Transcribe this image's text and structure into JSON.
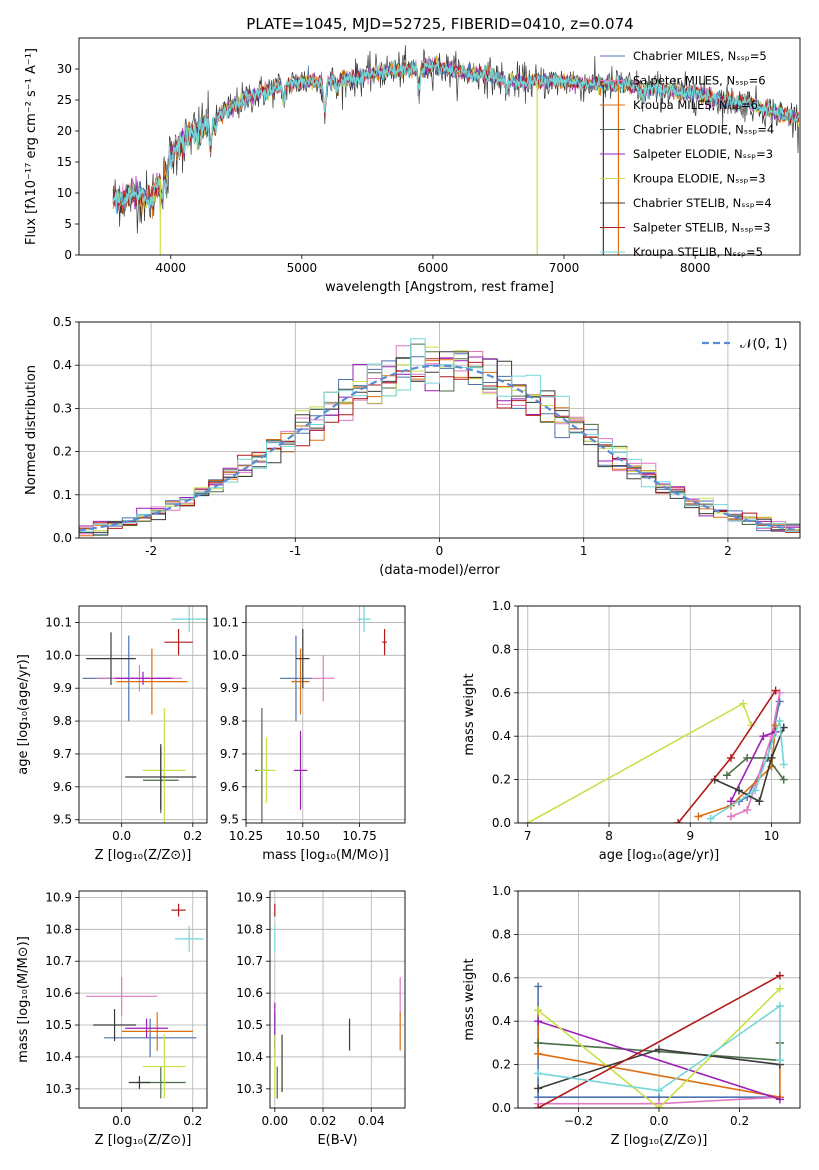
{
  "title": "PLATE=1045, MJD=52725, FIBERID=0410, z=0.074",
  "colors": {
    "Chabrier MILES": "#4c72b0",
    "Salpeter MILES": "#e377c2",
    "Kroupa MILES": "#dd6d10",
    "Chabrier ELODIE": "#4a6e46",
    "Salpeter ELODIE": "#9b1fb5",
    "Kroupa ELODIE": "#c8e04a",
    "Chabrier STELIB": "#3a3a3a",
    "Salpeter STELIB": "#b21a1a",
    "Kroupa STELIB": "#72d6d8",
    "gaussian": "#5b8bd6"
  },
  "chart_data": [
    {
      "id": "spectrum",
      "type": "line",
      "xlabel": "wavelength [Angstrom, rest frame]",
      "ylabel": "Flux [fλ10⁻¹⁷ erg cm⁻² s⁻¹ A⁻¹]",
      "xlim": [
        3300,
        8800
      ],
      "ylim": [
        0,
        35
      ],
      "xticks": [
        4000,
        5000,
        6000,
        7000,
        8000
      ],
      "yticks": [
        0,
        5,
        10,
        15,
        20,
        25,
        30
      ],
      "legend_position": "right",
      "legend": [
        "Chabrier MILES, Nₛₛₚ=5",
        "Salpeter MILES, Nₛₛₚ=6",
        "Kroupa MILES, Nₛₛₚ=6",
        "Chabrier ELODIE, Nₛₛₚ=4",
        "Salpeter ELODIE, Nₛₛₚ=3",
        "Kroupa ELODIE, Nₛₛₚ=3",
        "Chabrier STELIB, Nₛₛₚ=4",
        "Salpeter STELIB, Nₛₛₚ=3",
        "Kroupa STELIB, Nₛₛₚ=5"
      ],
      "continuum": {
        "x": [
          3550,
          3700,
          3850,
          4000,
          4100,
          4200,
          4400,
          4600,
          4800,
          5000,
          5200,
          5400,
          5600,
          5800,
          6000,
          6200,
          6400,
          6600,
          6800,
          7000,
          7200,
          7400,
          7600,
          7800,
          8000,
          8200,
          8400,
          8600,
          8800
        ],
        "y": [
          9,
          9.5,
          9,
          16,
          19,
          20,
          23,
          25.5,
          27,
          28,
          28,
          28.5,
          29.5,
          30,
          30.5,
          29.5,
          29,
          28,
          28,
          28,
          27.5,
          27.5,
          27,
          26.5,
          26,
          25,
          24.5,
          23,
          22
        ]
      }
    },
    {
      "id": "residuals",
      "type": "histogram",
      "xlabel": "(data-model)/error",
      "ylabel": "Normed distribution",
      "xlim": [
        -2.5,
        2.5
      ],
      "ylim": [
        0,
        0.5
      ],
      "xticks": [
        -2,
        -1,
        0,
        1,
        2
      ],
      "yticks": [
        0.0,
        0.1,
        0.2,
        0.3,
        0.4,
        0.5
      ],
      "legend": "𝒩(0, 1)",
      "legend_position": "top-right",
      "bin_width": 0.1
    },
    {
      "id": "age-vs-Z",
      "type": "scatter",
      "xlabel": "Z [log₁₀(Z/Z⊙)]",
      "ylabel": "age  [log₁₀(age/yr)]",
      "xlim": [
        -0.12,
        0.24
      ],
      "ylim": [
        9.49,
        10.15
      ],
      "xticks": [
        0.0,
        0.2
      ],
      "xticklabels": [
        "0.0",
        "0.2"
      ],
      "yticks": [
        9.5,
        9.6,
        9.7,
        9.8,
        9.9,
        10.0,
        10.1
      ],
      "points": [
        {
          "model": "Chabrier MILES",
          "x": 0.02,
          "y": 9.93,
          "xerr": 0.13,
          "yerr": 0.13
        },
        {
          "model": "Salpeter MILES",
          "x": 0.05,
          "y": 9.93,
          "xerr": 0.12,
          "yerr": 0.04
        },
        {
          "model": "Kroupa MILES",
          "x": 0.085,
          "y": 9.92,
          "xerr": 0.1,
          "yerr": 0.1
        },
        {
          "model": "Chabrier ELODIE",
          "x": 0.11,
          "y": 9.62,
          "xerr": 0.05,
          "yerr": 0.1
        },
        {
          "model": "Salpeter ELODIE",
          "x": 0.06,
          "y": 9.93,
          "xerr": 0.08,
          "yerr": 0.02
        },
        {
          "model": "Kroupa ELODIE",
          "x": 0.12,
          "y": 9.65,
          "xerr": 0.06,
          "yerr": 0.19
        },
        {
          "model": "Chabrier STELIB",
          "x": -0.03,
          "y": 9.99,
          "xerr": 0.07,
          "yerr": 0.08
        },
        {
          "model": "Chabrier STELIB",
          "x": 0.11,
          "y": 9.63,
          "xerr": 0.1,
          "yerr": 0.1
        },
        {
          "model": "Salpeter STELIB",
          "x": 0.16,
          "y": 10.04,
          "xerr": 0.04,
          "yerr": 0.04
        },
        {
          "model": "Kroupa STELIB",
          "x": 0.19,
          "y": 10.11,
          "xerr": 0.05,
          "yerr": 0.04
        }
      ]
    },
    {
      "id": "age-vs-mass",
      "type": "scatter",
      "xlabel": "mass [log₁₀(M/M⊙)]",
      "ylabel": "",
      "xlim": [
        10.25,
        10.95
      ],
      "ylim": [
        9.49,
        10.15
      ],
      "xticks": [
        10.25,
        10.5,
        10.75
      ],
      "xticklabels": [
        "10.25",
        "10.50",
        "10.75"
      ],
      "yticks": [
        9.5,
        9.6,
        9.7,
        9.8,
        9.9,
        10.0,
        10.1
      ],
      "points": [
        {
          "model": "Chabrier MILES",
          "x": 10.47,
          "y": 9.93,
          "xerr": 0.07,
          "yerr": 0.13
        },
        {
          "model": "Salpeter MILES",
          "x": 10.59,
          "y": 9.93,
          "xerr": 0.05,
          "yerr": 0.07
        },
        {
          "model": "Kroupa MILES",
          "x": 10.49,
          "y": 9.92,
          "xerr": 0.04,
          "yerr": 0.1
        },
        {
          "model": "Chabrier ELODIE",
          "x": 10.32,
          "y": 9.65,
          "xerr": 0.03,
          "yerr": 0.19
        },
        {
          "model": "Salpeter ELODIE",
          "x": 10.49,
          "y": 9.65,
          "xerr": 0.03,
          "yerr": 0.12
        },
        {
          "model": "Kroupa ELODIE",
          "x": 10.34,
          "y": 9.65,
          "xerr": 0.04,
          "yerr": 0.1
        },
        {
          "model": "Chabrier STELIB",
          "x": 10.5,
          "y": 9.99,
          "xerr": 0.03,
          "yerr": 0.09
        },
        {
          "model": "Salpeter STELIB",
          "x": 10.86,
          "y": 10.04,
          "xerr": 0.01,
          "yerr": 0.04
        },
        {
          "model": "Kroupa STELIB",
          "x": 10.77,
          "y": 10.11,
          "xerr": 0.03,
          "yerr": 0.04
        }
      ]
    },
    {
      "id": "weight-vs-age",
      "type": "line",
      "xlabel": "age  [log₁₀(age/yr)]",
      "ylabel": "mass weight",
      "xlim": [
        6.88,
        10.35
      ],
      "ylim": [
        0,
        1.0
      ],
      "xticks": [
        7,
        8,
        9,
        10
      ],
      "yticks": [
        0.0,
        0.2,
        0.4,
        0.6,
        0.8,
        1.0
      ],
      "series": [
        {
          "model": "Chabrier MILES",
          "x": [
            9.6,
            9.7,
            9.95,
            10.1
          ],
          "y": [
            0.1,
            0.12,
            0.3,
            0.56
          ]
        },
        {
          "model": "Salpeter MILES",
          "x": [
            9.5,
            9.7,
            10.0,
            10.1
          ],
          "y": [
            0.03,
            0.06,
            0.4,
            0.6
          ]
        },
        {
          "model": "Kroupa MILES",
          "x": [
            9.1,
            9.5,
            10.0,
            10.05
          ],
          "y": [
            0.03,
            0.08,
            0.26,
            0.45
          ]
        },
        {
          "model": "Chabrier ELODIE",
          "x": [
            9.45,
            9.7,
            9.95,
            10.15
          ],
          "y": [
            0.22,
            0.3,
            0.3,
            0.2
          ]
        },
        {
          "model": "Salpeter ELODIE",
          "x": [
            9.5,
            9.9,
            10.05
          ],
          "y": [
            0.1,
            0.4,
            0.42
          ]
        },
        {
          "model": "Kroupa ELODIE",
          "x": [
            7.0,
            9.65,
            9.75
          ],
          "y": [
            0.0,
            0.55,
            0.45
          ]
        },
        {
          "model": "Chabrier STELIB",
          "x": [
            9.3,
            9.6,
            9.85,
            10.0,
            10.15
          ],
          "y": [
            0.2,
            0.15,
            0.1,
            0.3,
            0.44
          ]
        },
        {
          "model": "Salpeter STELIB",
          "x": [
            8.85,
            9.5,
            10.05
          ],
          "y": [
            0.0,
            0.3,
            0.61
          ]
        },
        {
          "model": "Kroupa STELIB",
          "x": [
            9.25,
            9.8,
            10.1,
            10.15
          ],
          "y": [
            0.02,
            0.15,
            0.47,
            0.27
          ]
        }
      ]
    },
    {
      "id": "mass-vs-Z",
      "type": "scatter",
      "xlabel": "Z [log₁₀(Z/Z⊙)]",
      "ylabel": "mass [log₁₀(M/M⊙)]",
      "xlim": [
        -0.12,
        0.24
      ],
      "ylim": [
        10.24,
        10.92
      ],
      "xticks": [
        0.0,
        0.2
      ],
      "xticklabels": [
        "0.0",
        "0.2"
      ],
      "yticks": [
        10.3,
        10.4,
        10.5,
        10.6,
        10.7,
        10.8,
        10.9
      ],
      "points": [
        {
          "model": "Chabrier MILES",
          "x": 0.08,
          "y": 10.46,
          "xerr": 0.13,
          "yerr": 0.06
        },
        {
          "model": "Salpeter MILES",
          "x": 0.0,
          "y": 10.59,
          "xerr": 0.1,
          "yerr": 0.06
        },
        {
          "model": "Kroupa MILES",
          "x": 0.1,
          "y": 10.48,
          "xerr": 0.1,
          "yerr": 0.06
        },
        {
          "model": "Chabrier ELODIE",
          "x": 0.11,
          "y": 10.32,
          "xerr": 0.07,
          "yerr": 0.05
        },
        {
          "model": "Salpeter ELODIE",
          "x": 0.07,
          "y": 10.49,
          "xerr": 0.06,
          "yerr": 0.03
        },
        {
          "model": "Kroupa ELODIE",
          "x": 0.12,
          "y": 10.37,
          "xerr": 0.06,
          "yerr": 0.1
        },
        {
          "model": "Chabrier STELIB",
          "x": -0.02,
          "y": 10.5,
          "xerr": 0.06,
          "yerr": 0.05
        },
        {
          "model": "Chabrier STELIB",
          "x": 0.05,
          "y": 10.32,
          "xerr": 0.03,
          "yerr": 0.02
        },
        {
          "model": "Salpeter STELIB",
          "x": 0.16,
          "y": 10.86,
          "xerr": 0.02,
          "yerr": 0.02
        },
        {
          "model": "Kroupa STELIB",
          "x": 0.19,
          "y": 10.77,
          "xerr": 0.04,
          "yerr": 0.04
        }
      ]
    },
    {
      "id": "mass-vs-EBV",
      "type": "scatter",
      "xlabel": "E(B-V)",
      "ylabel": "",
      "xlim": [
        -0.002,
        0.054
      ],
      "ylim": [
        10.24,
        10.92
      ],
      "xticks": [
        0.0,
        0.02,
        0.04
      ],
      "xticklabels": [
        "0.00",
        "0.02",
        "0.04"
      ],
      "yticks": [
        10.3,
        10.4,
        10.5,
        10.6,
        10.7,
        10.8,
        10.9
      ],
      "points": [
        {
          "model": "Chabrier MILES",
          "x": 0.0,
          "y": 10.47,
          "xerr": 0.0,
          "yerr": 0.07
        },
        {
          "model": "Salpeter MILES",
          "x": 0.052,
          "y": 10.59,
          "xerr": 0.0,
          "yerr": 0.06
        },
        {
          "model": "Kroupa MILES",
          "x": 0.052,
          "y": 10.48,
          "xerr": 0.0,
          "yerr": 0.06
        },
        {
          "model": "Chabrier ELODIE",
          "x": 0.001,
          "y": 10.32,
          "xerr": 0.0,
          "yerr": 0.05
        },
        {
          "model": "Salpeter ELODIE",
          "x": 0.0,
          "y": 10.5,
          "xerr": 0.0,
          "yerr": 0.07
        },
        {
          "model": "Kroupa ELODIE",
          "x": 0.0,
          "y": 10.37,
          "xerr": 0.0,
          "yerr": 0.1
        },
        {
          "model": "Chabrier STELIB",
          "x": 0.003,
          "y": 10.38,
          "xerr": 0.0,
          "yerr": 0.09
        },
        {
          "model": "Chabrier STELIB",
          "x": 0.031,
          "y": 10.47,
          "xerr": 0.0,
          "yerr": 0.05
        },
        {
          "model": "Salpeter STELIB",
          "x": 0.0,
          "y": 10.86,
          "xerr": 0.0,
          "yerr": 0.02
        },
        {
          "model": "Kroupa STELIB",
          "x": 0.0,
          "y": 10.77,
          "xerr": 0.0,
          "yerr": 0.04
        }
      ]
    },
    {
      "id": "weight-vs-Z",
      "type": "line",
      "xlabel": "Z [log₁₀(Z/Z⊙)]",
      "ylabel": "mass weight",
      "xlim": [
        -0.35,
        0.35
      ],
      "ylim": [
        0,
        1.0
      ],
      "xticks": [
        -0.2,
        0.0,
        0.2
      ],
      "xticklabels": [
        "−0.2",
        "0.0",
        "0.2"
      ],
      "yticks": [
        0.0,
        0.2,
        0.4,
        0.6,
        0.8,
        1.0
      ],
      "series": [
        {
          "model": "Chabrier MILES",
          "x": [
            -0.3,
            -0.3,
            0.0,
            0.3
          ],
          "y": [
            0.56,
            0.05,
            0.05,
            0.05
          ]
        },
        {
          "model": "Salpeter MILES",
          "x": [
            -0.3,
            0.0,
            0.3
          ],
          "y": [
            0.02,
            0.02,
            0.05
          ]
        },
        {
          "model": "Kroupa MILES",
          "x": [
            -0.3,
            -0.3,
            0.3,
            0.3
          ],
          "y": [
            0.45,
            0.25,
            0.05,
            0.3
          ]
        },
        {
          "model": "Chabrier ELODIE",
          "x": [
            -0.3,
            0.3,
            0.3
          ],
          "y": [
            0.3,
            0.22,
            0.3
          ]
        },
        {
          "model": "Salpeter ELODIE",
          "x": [
            -0.3,
            0.3
          ],
          "y": [
            0.4,
            0.04
          ]
        },
        {
          "model": "Kroupa ELODIE",
          "x": [
            -0.3,
            0.0,
            0.3
          ],
          "y": [
            0.45,
            0.0,
            0.55
          ]
        },
        {
          "model": "Chabrier STELIB",
          "x": [
            -0.3,
            0.0,
            0.3
          ],
          "y": [
            0.09,
            0.27,
            0.2
          ]
        },
        {
          "model": "Salpeter STELIB",
          "x": [
            -0.3,
            0.3
          ],
          "y": [
            0.0,
            0.61
          ]
        },
        {
          "model": "Kroupa STELIB",
          "x": [
            -0.3,
            0.0,
            0.3,
            0.3
          ],
          "y": [
            0.16,
            0.08,
            0.47,
            0.22
          ]
        }
      ]
    }
  ]
}
